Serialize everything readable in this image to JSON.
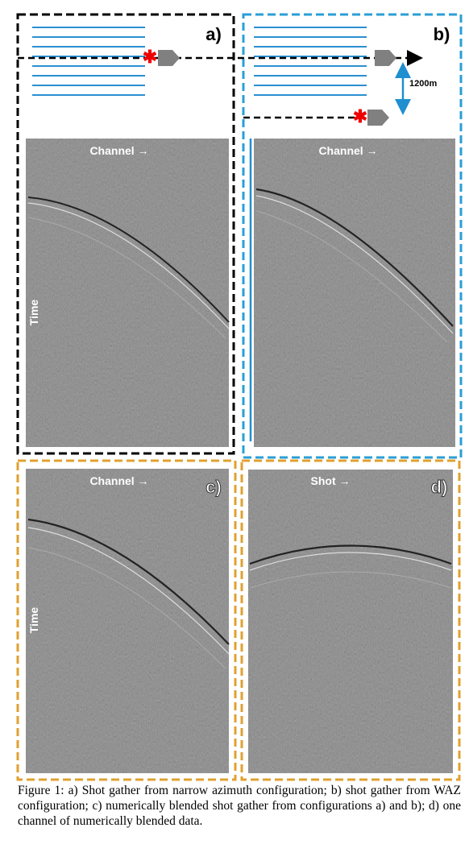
{
  "panels": [
    {
      "label": "a)",
      "axis_label": "Channel →",
      "time_label": "Time"
    },
    {
      "label": "b)",
      "axis_label": "Channel →",
      "distance": "1200m"
    },
    {
      "label": "c)",
      "axis_label": "Channel →",
      "time_label": "Time"
    },
    {
      "label": "d)",
      "axis_label": "Shot →"
    }
  ],
  "caption": "Figure 1: a) Shot gather from narrow azimuth configuration; b) shot gather from WAZ configuration; c) numerically blended shot gather from configurations a) and b); d) one channel of numerically blended data."
}
